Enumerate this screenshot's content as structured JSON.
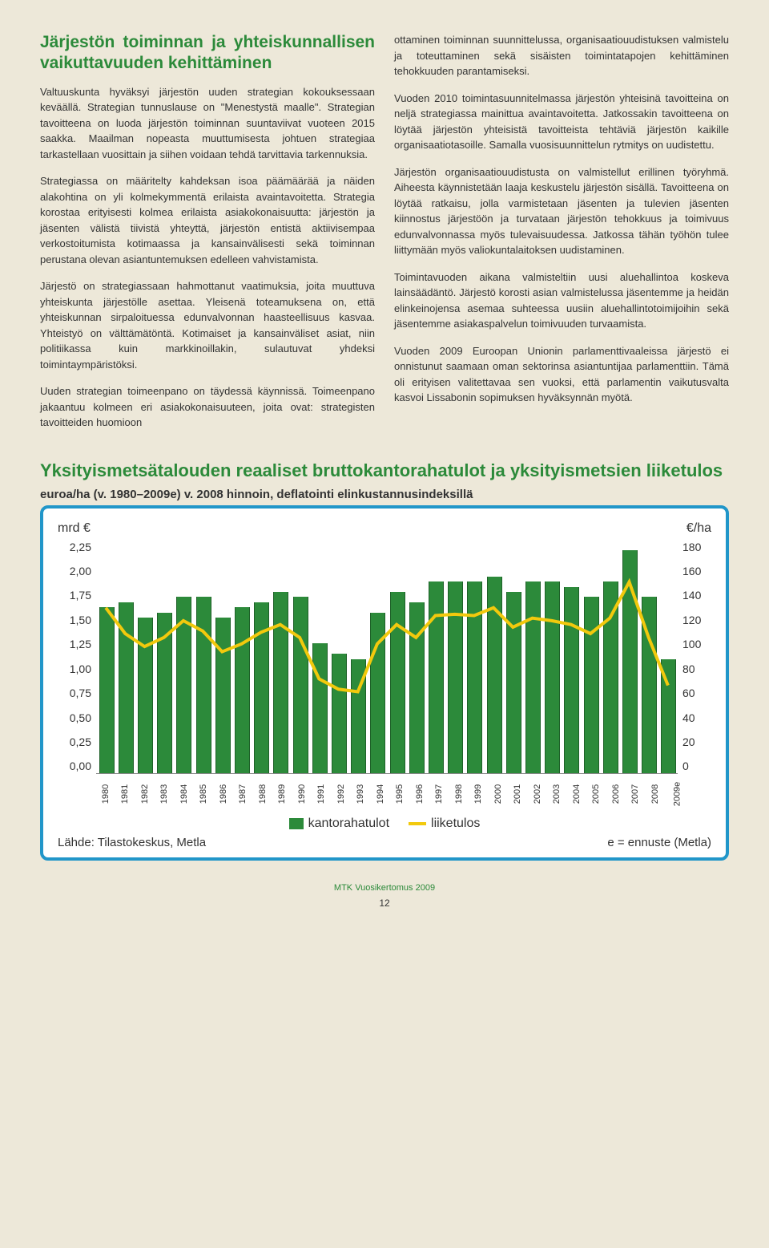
{
  "section_title": "Järjestön toiminnan ja yhteiskunnallisen vaikuttavuuden kehittäminen",
  "left_col": [
    "Valtuuskunta hyväksyi järjestön uuden strategian kokouksessaan keväällä. Strategian tunnuslause on \"Menestystä maalle\". Strategian tavoitteena on luoda järjestön toiminnan suuntaviivat vuoteen 2015 saakka. Maailman nopeasta muuttumisesta johtuen strategiaa tarkastellaan vuosittain ja siihen voidaan tehdä tarvittavia tarkennuksia.",
    "Strategiassa on määritelty kahdeksan isoa päämäärää ja näiden alakohtina on yli kolmekymmentä erilaista avaintavoitetta. Strategia korostaa erityisesti kolmea erilaista asiakokonaisuutta: järjestön ja jäsenten välistä tiivistä yhteyttä, järjestön entistä aktiivisempaa verkostoitumista kotimaassa ja kansainvälisesti sekä toiminnan perustana olevan asiantuntemuksen edelleen vahvistamista.",
    "Järjestö on strategiassaan hahmottanut vaatimuksia, joita muuttuva yhteiskunta järjestölle asettaa. Yleisenä toteamuksena on, että yhteiskunnan sirpaloituessa edunvalvonnan haasteellisuus kasvaa. Yhteistyö on välttämätöntä. Kotimaiset ja kansainväliset asiat, niin politiikassa kuin markkinoillakin, sulautuvat yhdeksi toimintaympäristöksi.",
    "Uuden strategian toimeenpano on täydessä käynnissä. Toimeenpano jakaantuu kolmeen eri asiakokonaisuuteen, joita ovat: strategisten tavoitteiden huomioon"
  ],
  "right_col": [
    "ottaminen toiminnan suunnittelussa, organisaatiouudistuksen valmistelu ja toteuttaminen sekä sisäisten toimintatapojen kehittäminen tehokkuuden parantamiseksi.",
    "Vuoden 2010 toimintasuunnitelmassa järjestön yhteisinä tavoitteina on neljä strategiassa mainittua avaintavoitetta. Jatkossakin tavoitteena on löytää järjestön yhteisistä tavoitteista tehtäviä järjestön kaikille organisaatiotasoille. Samalla vuosisuunnittelun rytmitys on uudistettu.",
    "Järjestön organisaatiouudistusta on valmistellut erillinen työryhmä. Aiheesta käynnistetään laaja keskustelu järjestön sisällä. Tavoitteena on löytää ratkaisu, jolla varmistetaan jäsenten ja tulevien jäsenten kiinnostus järjestöön ja turvataan järjestön tehokkuus ja toimivuus edunvalvonnassa myös tulevaisuudessa. Jatkossa tähän työhön tulee liittymään myös valiokuntalaitoksen uudistaminen.",
    "Toimintavuoden aikana valmisteltiin uusi aluehallintoa koskeva lainsäädäntö. Järjestö korosti asian valmistelussa jäsentemme ja heidän elinkeinojensa asemaa suhteessa uusiin aluehallintotoimijoihin sekä jäsentemme asiakaspalvelun toimivuuden turvaamista.",
    "Vuoden 2009 Euroopan Unionin parlamenttivaaleissa järjestö ei onnistunut saamaan oman sektorinsa asiantuntijaa parlamenttiin. Tämä oli erityisen valitettavaa sen vuoksi, että parlamentin vaikutusvalta kasvoi Lissabonin sopimuksen hyväksynnän myötä."
  ],
  "chart": {
    "title": "Yksityismetsätalouden reaaliset bruttokantorahatulot ja yksityismetsien liiketulos",
    "subtitle": "euroa/ha (v. 1980–2009e) v. 2008 hinnoin, deflatointi elinkustannusindeksillä",
    "y_left_label": "mrd €",
    "y_right_label": "€/ha",
    "y_left_ticks": [
      "2,25",
      "2,00",
      "1,75",
      "1,50",
      "1,25",
      "1,00",
      "0,75",
      "0,50",
      "0,25",
      "0,00"
    ],
    "y_right_ticks": [
      "180",
      "160",
      "140",
      "120",
      "100",
      "80",
      "60",
      "40",
      "20",
      "0"
    ],
    "y_left_max": 2.25,
    "y_right_max": 180,
    "bar_color": "#2c8a3a",
    "line_color": "#f2c90d",
    "border_color": "#2196c9",
    "background": "#ffffff",
    "categories": [
      "1980",
      "1981",
      "1982",
      "1983",
      "1984",
      "1985",
      "1986",
      "1987",
      "1988",
      "1989",
      "1990",
      "1991",
      "1992",
      "1993",
      "1994",
      "1995",
      "1996",
      "1997",
      "1998",
      "1999",
      "2000",
      "2001",
      "2002",
      "2003",
      "2004",
      "2005",
      "2006",
      "2007",
      "2008",
      "2009e"
    ],
    "bars": [
      1.6,
      1.65,
      1.5,
      1.55,
      1.7,
      1.7,
      1.5,
      1.6,
      1.65,
      1.75,
      1.7,
      1.25,
      1.15,
      1.1,
      1.55,
      1.75,
      1.65,
      1.85,
      1.85,
      1.85,
      1.9,
      1.75,
      1.85,
      1.85,
      1.8,
      1.7,
      1.85,
      2.15,
      1.7,
      1.1
    ],
    "line": [
      128,
      108,
      98,
      105,
      118,
      110,
      94,
      100,
      109,
      115,
      105,
      73,
      65,
      63,
      100,
      115,
      105,
      122,
      123,
      122,
      128,
      113,
      120,
      118,
      115,
      108,
      120,
      148,
      105,
      68
    ],
    "legend": {
      "bars": "kantorahatulot",
      "line": "liiketulos"
    },
    "source_label": "Lähde: Tilastokeskus, Metla",
    "ennuste_label": "e = ennuste (Metla)"
  },
  "footer": "MTK Vuosikertomus 2009",
  "page_number": "12"
}
